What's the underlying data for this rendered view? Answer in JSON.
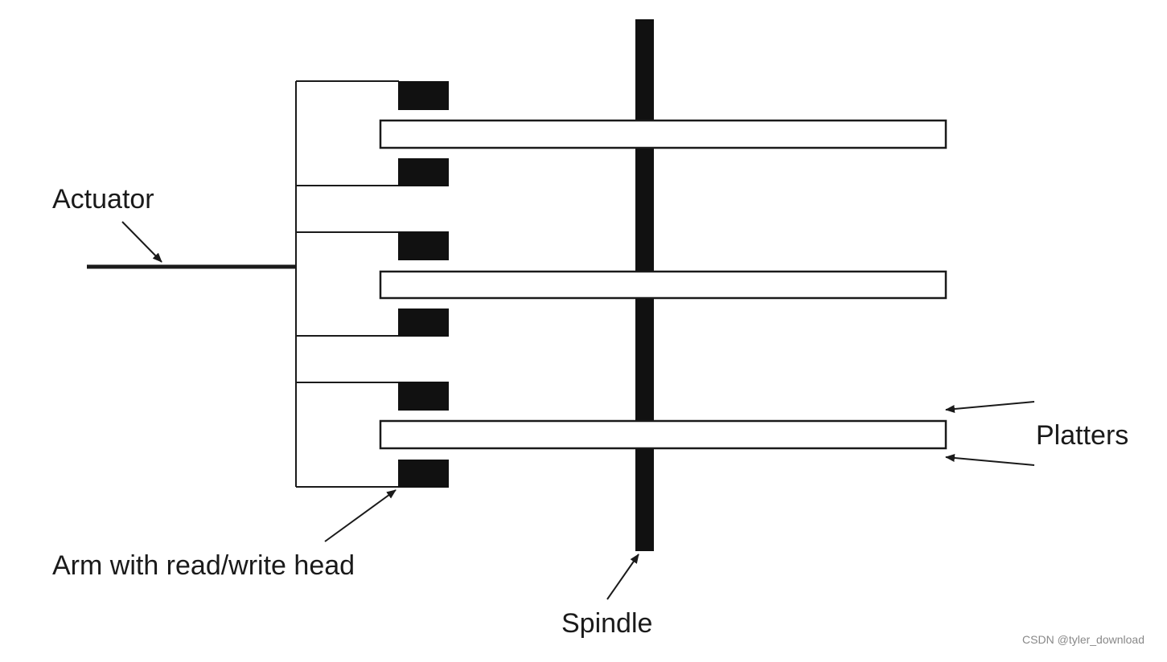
{
  "labels": {
    "actuator": "Actuator",
    "arm": "Arm with read/write head",
    "spindle": "Spindle",
    "platters": "Platters"
  },
  "watermark": "CSDN @tyler_download",
  "colors": {
    "line": "#1a1a1a",
    "fill": "#ffffff",
    "head": "#111111",
    "watermark": "#888888"
  }
}
